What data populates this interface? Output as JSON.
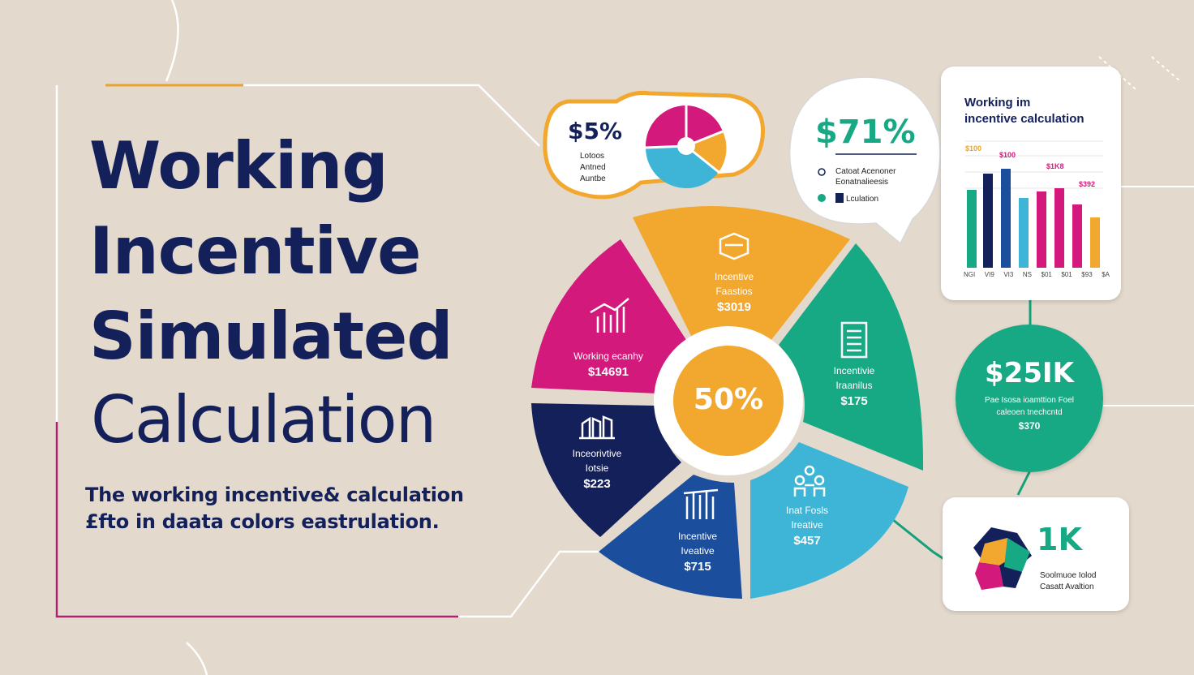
{
  "title": {
    "line1": "Working",
    "line2": "Incentive",
    "line3": "Simulated",
    "line4": "Calculation"
  },
  "subtitle": {
    "line1": "The working incentive& calculation",
    "line2": "£fto in daata colors eastrulation."
  },
  "colors": {
    "background": "#e3d9cd",
    "navy": "#14205a",
    "magenta": "#d4197c",
    "orange": "#f2a72e",
    "teal": "#17a884",
    "blue": "#1b4f9e",
    "cyan": "#3eb5d6"
  },
  "center": {
    "value": "50%"
  },
  "wedges": [
    {
      "key": "orange",
      "icon": "box-icon",
      "line1": "Incentive",
      "line2": "Faastios",
      "value": "$3019"
    },
    {
      "key": "magenta",
      "icon": "growth-chart-icon",
      "line1": "Working ecanhy",
      "line2": "",
      "value": "$14691"
    },
    {
      "key": "teal",
      "icon": "building-icon",
      "line1": "Incentivie",
      "line2": "Iraanilus",
      "value": "$175"
    },
    {
      "key": "navy",
      "icon": "factory-icon",
      "line1": "Inceorivtive",
      "line2": "Iotsie",
      "value": "$223"
    },
    {
      "key": "blue",
      "icon": "bar-icon",
      "line1": "Incentive",
      "line2": "Iveative",
      "value": "$715"
    },
    {
      "key": "cyan",
      "icon": "people-icon",
      "line1": "Inat Fosls",
      "line2": "Ireative",
      "value": "$457"
    }
  ],
  "pie_card": {
    "value": "$5%",
    "lines": [
      "Lotoos",
      "Antned",
      "Auntbe"
    ]
  },
  "bubble_card": {
    "value": "$71%",
    "row1": "Catoat Acenoner",
    "row1b": "Eonatnalieesis",
    "row2": "Lculation"
  },
  "bar_card": {
    "title1": "Working im",
    "title2": "incentive calculation",
    "labels_top": [
      "$100",
      "$100",
      "$1K8",
      "$392"
    ],
    "labels_bottom": [
      "NGI",
      "VI9",
      "VI3",
      "NS",
      "$01",
      "$01",
      "$93",
      "$A"
    ]
  },
  "circle_stat": {
    "value": "$25IK",
    "line1": "Pae Isosa ioamttion Foel",
    "line2": "caleoen tnechcntd",
    "line3": "$370"
  },
  "small_card": {
    "value": "1K",
    "line1": "Soolmuoe Iolod",
    "line2": "Casatt Avaltion"
  }
}
